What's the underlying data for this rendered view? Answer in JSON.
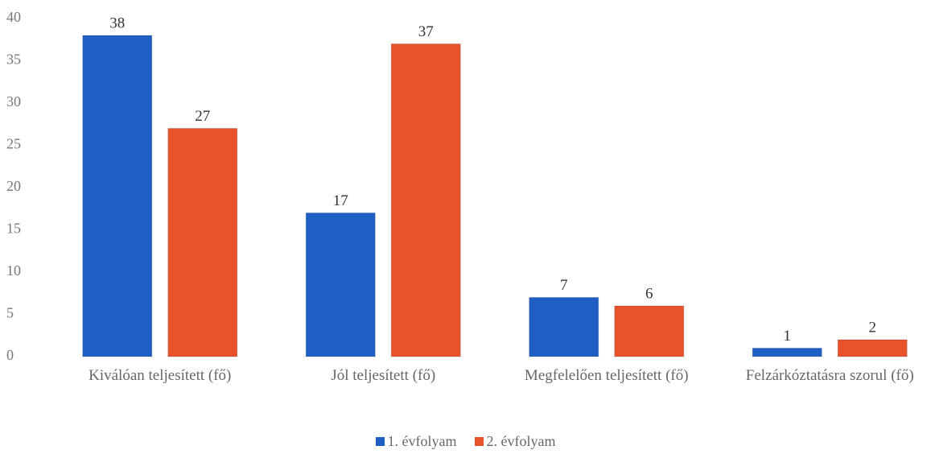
{
  "chart_data": {
    "type": "bar",
    "categories": [
      "Kiválóan teljesített (fő)",
      "Jól teljesített (fő)",
      "Megfelelően teljesített (fő)",
      "Felzárkóztatásra szorul (fő)"
    ],
    "series": [
      {
        "name": "1. évfolyam",
        "color": "#1f5fc4",
        "values": [
          38,
          17,
          7,
          1
        ]
      },
      {
        "name": "2. évfolyam",
        "color": "#e8532e",
        "values": [
          27,
          37,
          6,
          2
        ]
      }
    ],
    "ylim": [
      0,
      40
    ],
    "yticks": [
      0,
      5,
      10,
      15,
      20,
      25,
      30,
      35,
      40
    ],
    "grid": false,
    "legend": "bottom"
  }
}
